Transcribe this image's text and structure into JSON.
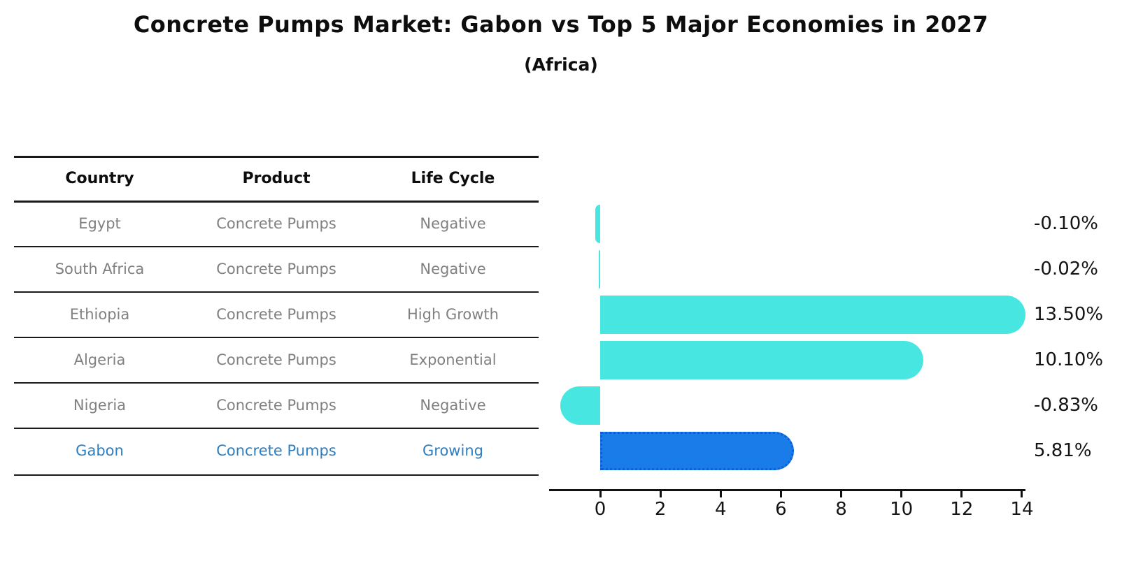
{
  "title": "Concrete Pumps Market: Gabon vs Top 5 Major Economies in 2027",
  "subtitle": "(Africa)",
  "table": {
    "headers": [
      "Country",
      "Product",
      "Life Cycle"
    ],
    "rows": [
      {
        "country": "Egypt",
        "product": "Concrete Pumps",
        "life_cycle": "Negative",
        "highlight": false
      },
      {
        "country": "South Africa",
        "product": "Concrete Pumps",
        "life_cycle": "Negative",
        "highlight": false
      },
      {
        "country": "Ethiopia",
        "product": "Concrete Pumps",
        "life_cycle": "High Growth",
        "highlight": false
      },
      {
        "country": "Algeria",
        "product": "Concrete Pumps",
        "life_cycle": "Exponential",
        "highlight": false
      },
      {
        "country": "Nigeria",
        "product": "Concrete Pumps",
        "life_cycle": "Negative",
        "highlight": false
      },
      {
        "country": "Gabon",
        "product": "Concrete Pumps",
        "life_cycle": "Growing",
        "highlight": true
      }
    ]
  },
  "chart_data": {
    "type": "bar",
    "orientation": "horizontal",
    "title": "Concrete Pumps Market: Gabon vs Top 5 Major Economies in 2027 (Africa)",
    "categories": [
      "Egypt",
      "South Africa",
      "Ethiopia",
      "Algeria",
      "Nigeria",
      "Gabon"
    ],
    "values": [
      -0.1,
      -0.02,
      13.5,
      10.1,
      -0.83,
      5.81
    ],
    "value_labels": [
      "-0.10%",
      "-0.02%",
      "13.50%",
      "10.10%",
      "-0.83%",
      "5.81%"
    ],
    "x_ticks": [
      "0",
      "2",
      "4",
      "6",
      "8",
      "10",
      "12",
      "14"
    ],
    "xlim": [
      -1.7,
      14.2
    ],
    "grid": false,
    "legend": null,
    "highlight_index": 5,
    "units": "percent CAGR"
  },
  "colors": {
    "bar": "#47e6e1",
    "highlight_bar": "#1a7ce8",
    "highlight_border": "#0d5fd6",
    "row_text": "#808080",
    "highlight_text": "#2e7fc2",
    "header_text": "#0d0d0d",
    "axis": "#111111"
  }
}
